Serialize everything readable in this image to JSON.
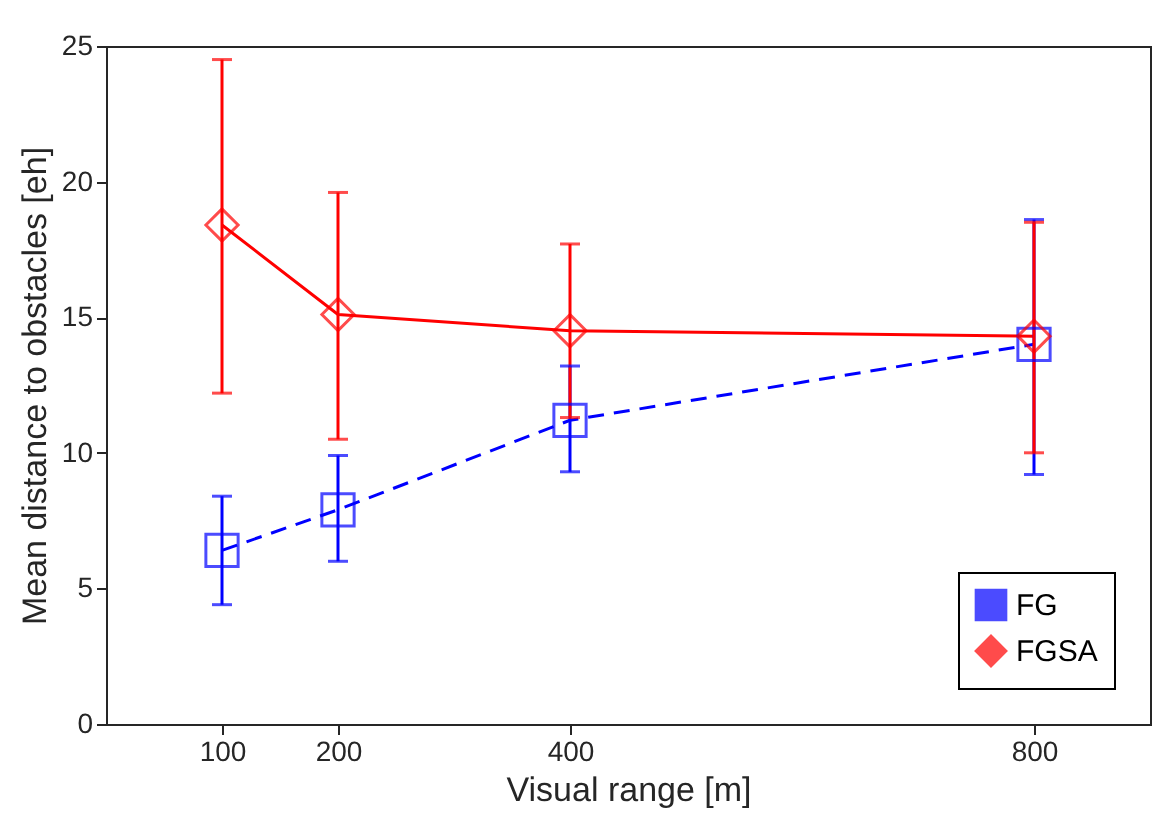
{
  "chart_data": {
    "type": "line",
    "xlabel": "Visual range [m]",
    "ylabel": "Mean distance to obstacles [eh]",
    "x": [
      100,
      200,
      400,
      800
    ],
    "series": [
      {
        "name": "FG",
        "color": "#0000ff",
        "values": [
          6.4,
          7.9,
          11.2,
          14.0
        ],
        "errors": [
          [
            4.4,
            8.4
          ],
          [
            6.0,
            9.9
          ],
          [
            9.3,
            13.2
          ],
          [
            9.2,
            18.6
          ]
        ],
        "marker": "square",
        "line_style": "dashed"
      },
      {
        "name": "FGSA",
        "color": "#ff0000",
        "values": [
          18.4,
          15.1,
          14.5,
          14.3
        ],
        "errors": [
          [
            12.2,
            24.5
          ],
          [
            10.5,
            19.6
          ],
          [
            11.3,
            17.7
          ],
          [
            10.0,
            18.5
          ]
        ],
        "marker": "diamond",
        "line_style": "solid"
      }
    ],
    "xlim": [
      0,
      900
    ],
    "xticks": [
      100,
      200,
      400,
      800
    ],
    "ylim": [
      0,
      25
    ],
    "yticks": [
      0,
      5,
      10,
      15,
      20,
      25
    ],
    "grid": false,
    "legend": "bottom right"
  }
}
